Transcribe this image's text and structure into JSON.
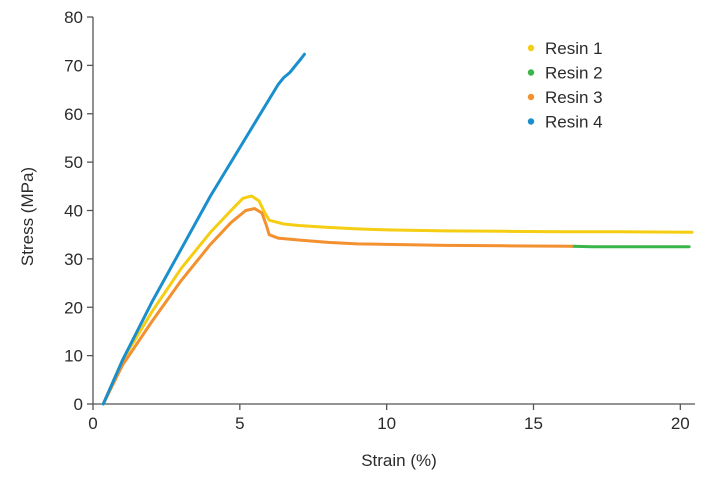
{
  "chart_data": {
    "type": "line",
    "title": "",
    "xlabel": "Strain (%)",
    "ylabel": "Stress (MPa)",
    "xlim": [
      0,
      20.5
    ],
    "ylim": [
      0,
      80
    ],
    "x_ticks": [
      0,
      5,
      10,
      15,
      20
    ],
    "y_ticks": [
      0,
      10,
      20,
      30,
      40,
      50,
      60,
      70,
      80
    ],
    "grid": false,
    "legend_position": "top-right",
    "series": [
      {
        "name": "Resin 1",
        "color": "#f5cd12",
        "points": [
          [
            0.35,
            0
          ],
          [
            1,
            9
          ],
          [
            2,
            19
          ],
          [
            3,
            28
          ],
          [
            4,
            35.5
          ],
          [
            4.7,
            40
          ],
          [
            5.1,
            42.5
          ],
          [
            5.4,
            43
          ],
          [
            5.65,
            42
          ],
          [
            5.85,
            39.5
          ],
          [
            6.0,
            38
          ],
          [
            6.5,
            37.2
          ],
          [
            7,
            36.9
          ],
          [
            8,
            36.5
          ],
          [
            9,
            36.2
          ],
          [
            10,
            36
          ],
          [
            12,
            35.8
          ],
          [
            14,
            35.7
          ],
          [
            16,
            35.6
          ],
          [
            18,
            35.6
          ],
          [
            20.4,
            35.5
          ]
        ]
      },
      {
        "name": "Resin 2",
        "color": "#3ab54a",
        "points": [
          [
            16.3,
            32.6
          ],
          [
            17,
            32.5
          ],
          [
            18,
            32.5
          ],
          [
            19,
            32.5
          ],
          [
            20.3,
            32.5
          ]
        ]
      },
      {
        "name": "Resin 3",
        "color": "#f3902f",
        "points": [
          [
            0.35,
            0
          ],
          [
            1,
            8
          ],
          [
            2,
            17
          ],
          [
            3,
            25.5
          ],
          [
            4,
            33
          ],
          [
            4.7,
            37.5
          ],
          [
            5.2,
            40
          ],
          [
            5.5,
            40.4
          ],
          [
            5.75,
            39.5
          ],
          [
            5.9,
            37
          ],
          [
            6.0,
            35
          ],
          [
            6.3,
            34.3
          ],
          [
            7,
            33.9
          ],
          [
            8,
            33.4
          ],
          [
            9,
            33.1
          ],
          [
            10,
            33
          ],
          [
            12,
            32.8
          ],
          [
            14,
            32.7
          ],
          [
            16.3,
            32.6
          ]
        ]
      },
      {
        "name": "Resin 4",
        "color": "#1a8fcd",
        "points": [
          [
            0.35,
            0
          ],
          [
            1,
            9
          ],
          [
            2,
            21
          ],
          [
            3,
            32
          ],
          [
            4,
            43
          ],
          [
            5,
            53
          ],
          [
            5.5,
            58
          ],
          [
            6,
            63
          ],
          [
            6.3,
            66
          ],
          [
            6.5,
            67.5
          ],
          [
            6.7,
            68.5
          ],
          [
            6.9,
            70
          ],
          [
            7.1,
            71.5
          ],
          [
            7.2,
            72.3
          ]
        ]
      }
    ]
  }
}
